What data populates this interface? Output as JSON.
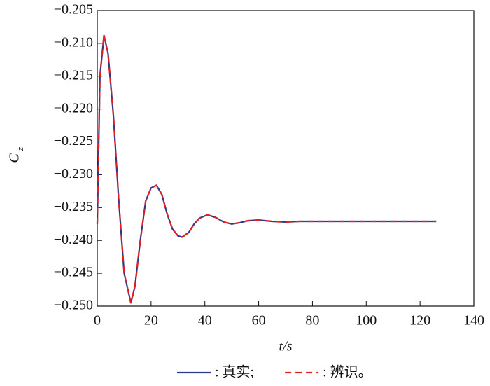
{
  "chart_data": {
    "type": "line",
    "x_label": "t/s",
    "y_label": "C",
    "y_label_sub": "z",
    "x": [
      0,
      1,
      2.5,
      4,
      6,
      8,
      10,
      12.5,
      14,
      16,
      18,
      20,
      22,
      24,
      26,
      28,
      30,
      31.5,
      34,
      36,
      38,
      41,
      44,
      47,
      50,
      53,
      56,
      60,
      65,
      70,
      75,
      80,
      90,
      100,
      110,
      120,
      126
    ],
    "series": [
      {
        "name": ": 真实;",
        "color": "#2b3a8c",
        "linestyle": "solid",
        "values": [
          -0.2375,
          -0.215,
          -0.2088,
          -0.2115,
          -0.221,
          -0.234,
          -0.245,
          -0.2495,
          -0.247,
          -0.24,
          -0.234,
          -0.232,
          -0.2316,
          -0.233,
          -0.236,
          -0.2383,
          -0.2393,
          -0.2395,
          -0.2388,
          -0.2375,
          -0.2366,
          -0.2361,
          -0.2365,
          -0.2372,
          -0.2375,
          -0.2373,
          -0.237,
          -0.2369,
          -0.2371,
          -0.2372,
          -0.2371,
          -0.2371,
          -0.2371,
          -0.2371,
          -0.2371,
          -0.2371,
          -0.2371
        ]
      },
      {
        "name": ": 辨识。",
        "color": "#e02020",
        "linestyle": "dashed",
        "values": [
          -0.2375,
          -0.215,
          -0.2088,
          -0.2115,
          -0.221,
          -0.234,
          -0.245,
          -0.2495,
          -0.247,
          -0.24,
          -0.234,
          -0.232,
          -0.2316,
          -0.233,
          -0.236,
          -0.2383,
          -0.2393,
          -0.2395,
          -0.2388,
          -0.2375,
          -0.2366,
          -0.2361,
          -0.2365,
          -0.2372,
          -0.2375,
          -0.2373,
          -0.237,
          -0.2369,
          -0.2371,
          -0.2372,
          -0.2371,
          -0.2371,
          -0.2371,
          -0.2371,
          -0.2371,
          -0.2371,
          -0.2371
        ]
      }
    ],
    "xlim": [
      0,
      140
    ],
    "xticks": [
      0,
      20,
      40,
      60,
      80,
      100,
      120,
      140
    ],
    "ylim": [
      -0.25,
      -0.205
    ],
    "yticks": [
      {
        "value": -0.25,
        "label": "−0.250"
      },
      {
        "value": -0.245,
        "label": "−0.245"
      },
      {
        "value": -0.24,
        "label": "−0.240"
      },
      {
        "value": -0.235,
        "label": "−0.235"
      },
      {
        "value": -0.23,
        "label": "−0.230"
      },
      {
        "value": -0.225,
        "label": "−0.225"
      },
      {
        "value": -0.22,
        "label": "−0.220"
      },
      {
        "value": -0.215,
        "label": "−0.215"
      },
      {
        "value": -0.21,
        "label": "−0.210"
      },
      {
        "value": -0.205,
        "label": "−0.205"
      }
    ],
    "grid": false
  }
}
